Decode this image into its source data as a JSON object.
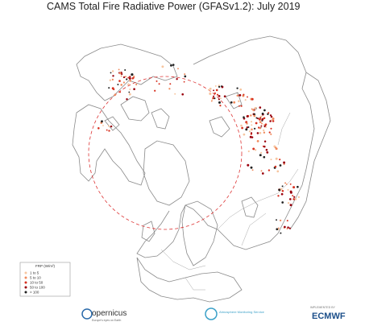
{
  "header": {
    "title": "CAMS Total Fire Radiative Power (GFASv1.2): July 2019"
  },
  "legend": {
    "title": "FRP (W/m²)",
    "entries": [
      "1 to 5",
      "5 to 10",
      "10 to 50",
      "50 to 100",
      "> 100"
    ],
    "colors": [
      "#f7c59f",
      "#f08a5d",
      "#d7301f",
      "#99000d",
      "#222222"
    ]
  },
  "footer": {
    "copernicus": "opernicus",
    "copernicus_sub": "Europe's eyes on Earth",
    "cams": "Atmosphere Monitoring Service",
    "ecmwf_top": "IMPLEMENTED BY",
    "ecmwf": "ECMWF"
  }
}
